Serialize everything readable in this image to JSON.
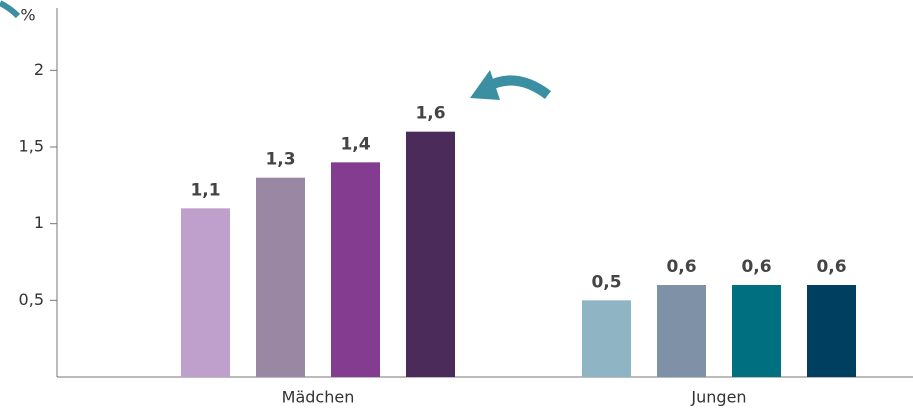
{
  "chart_data": {
    "type": "bar",
    "y_label": "%",
    "categories": [
      "Mädchen",
      "Jungen"
    ],
    "series": [
      {
        "colors": [
          "#bfa0cc",
          "#8fb5c4"
        ],
        "values": [
          1.1,
          0.5
        ],
        "value_labels": [
          "1,1",
          "0,5"
        ]
      },
      {
        "colors": [
          "#9a87a3",
          "#7e91a6"
        ],
        "values": [
          1.3,
          0.6
        ],
        "value_labels": [
          "1,3",
          "0,6"
        ]
      },
      {
        "colors": [
          "#833c8f",
          "#006f80"
        ],
        "values": [
          1.4,
          0.6
        ],
        "value_labels": [
          "1,4",
          "0,6"
        ]
      },
      {
        "colors": [
          "#4a2b5a",
          "#003f5f"
        ],
        "values": [
          1.6,
          0.6
        ],
        "value_labels": [
          "1,6",
          "0,6"
        ]
      }
    ],
    "ylim": [
      0,
      2.4
    ],
    "yticks": [
      {
        "value": 0.5,
        "label": "0,5"
      },
      1,
      {
        "value": 1.5,
        "label": "1,5"
      },
      2
    ]
  }
}
